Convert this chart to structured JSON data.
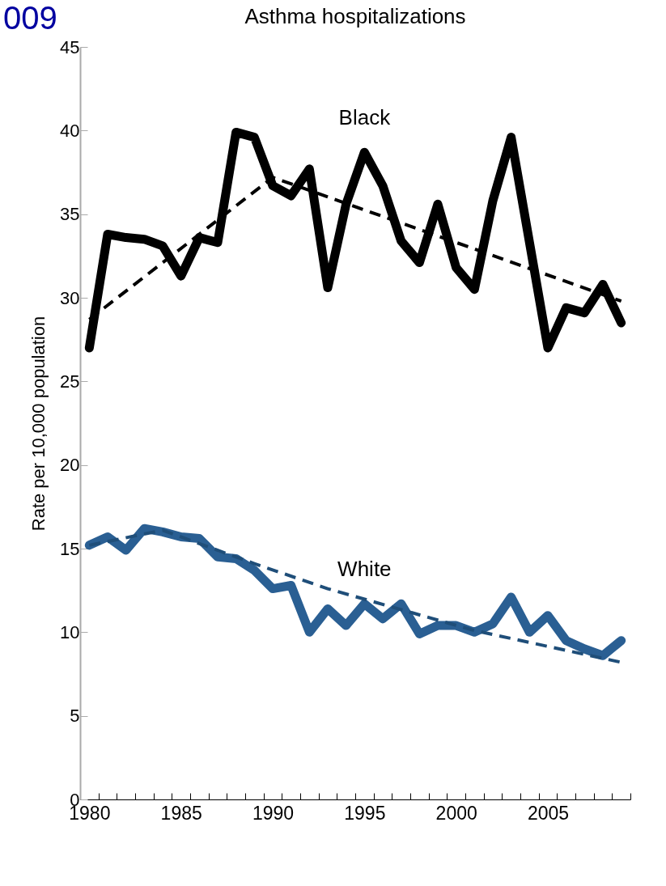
{
  "chart_data": {
    "type": "line",
    "title": "Asthma hospitalizations",
    "ylabel": "Rate per 10,000 population",
    "annotations": [
      "009"
    ],
    "x": [
      1980,
      1981,
      1982,
      1983,
      1984,
      1985,
      1986,
      1987,
      1988,
      1989,
      1990,
      1991,
      1992,
      1993,
      1994,
      1995,
      1996,
      1997,
      1998,
      1999,
      2000,
      2001,
      2002,
      2003,
      2004,
      2005,
      2006,
      2007,
      2008,
      2009
    ],
    "xlim": [
      1979.5,
      2009.5
    ],
    "xticks": [
      1980,
      1985,
      1990,
      1995,
      2000,
      2005,
      {
        "value": 1979.5,
        "label": null
      },
      {
        "value": 1980.5,
        "label": null
      },
      {
        "value": 1981.5,
        "label": null
      },
      {
        "value": 1982.5,
        "label": null
      },
      {
        "value": 1983.5,
        "label": null
      },
      {
        "value": 1984.5,
        "label": null
      },
      {
        "value": 1985.5,
        "label": null
      },
      {
        "value": 1986.5,
        "label": null
      },
      {
        "value": 1987.5,
        "label": null
      },
      {
        "value": 1988.5,
        "label": null
      },
      {
        "value": 1989.5,
        "label": null
      },
      {
        "value": 1990.5,
        "label": null
      },
      {
        "value": 1991.5,
        "label": null
      },
      {
        "value": 1992.5,
        "label": null
      },
      {
        "value": 1993.5,
        "label": null
      },
      {
        "value": 1994.5,
        "label": null
      },
      {
        "value": 1995.5,
        "label": null
      },
      {
        "value": 1996.5,
        "label": null
      },
      {
        "value": 1997.5,
        "label": null
      },
      {
        "value": 1998.5,
        "label": null
      },
      {
        "value": 1999.5,
        "label": null
      },
      {
        "value": 2000.5,
        "label": null
      },
      {
        "value": 2001.5,
        "label": null
      },
      {
        "value": 2002.5,
        "label": null
      },
      {
        "value": 2003.5,
        "label": null
      },
      {
        "value": 2004.5,
        "label": null
      },
      {
        "value": 2005.5,
        "label": null
      },
      {
        "value": 2006.5,
        "label": null
      },
      {
        "value": 2007.5,
        "label": null
      },
      {
        "value": 2008.5,
        "label": null
      },
      {
        "value": 2009.5,
        "label": null
      }
    ],
    "ylim": [
      0,
      45
    ],
    "yticks": [
      0,
      5,
      10,
      15,
      20,
      25,
      30,
      35,
      40,
      45
    ],
    "series": [
      {
        "name": "Black",
        "color": "#000000",
        "values": [
          27.0,
          33.8,
          33.6,
          33.5,
          33.1,
          31.3,
          33.6,
          33.3,
          39.9,
          39.6,
          36.7,
          36.1,
          37.7,
          30.6,
          35.6,
          38.7,
          36.7,
          33.4,
          32.1,
          35.6,
          31.8,
          30.5,
          35.8,
          39.6,
          33.3,
          27.0,
          29.4,
          29.1,
          30.8,
          28.5
        ]
      },
      {
        "name": "White",
        "color": "#2a5f93",
        "values": [
          15.2,
          15.7,
          14.9,
          16.2,
          16.0,
          15.7,
          15.6,
          14.5,
          14.4,
          13.7,
          12.6,
          12.8,
          10.0,
          11.4,
          10.4,
          11.7,
          10.8,
          11.7,
          9.9,
          10.4,
          10.4,
          10.0,
          10.5,
          12.1,
          10.0,
          11.0,
          9.5,
          9.0,
          8.6,
          9.5
        ]
      },
      {
        "type": "line",
        "color": "#000000",
        "line_style": "dashed",
        "x": [
          1980,
          1990,
          2009
        ],
        "values": [
          28.7,
          37.2,
          29.8
        ]
      },
      {
        "type": "line",
        "color": "#1f4e79",
        "line_style": "dashed",
        "x": [
          1980,
          1984,
          1989,
          1993,
          2001,
          2009
        ],
        "values": [
          15.2,
          16.1,
          14.1,
          12.6,
          10.1,
          8.2
        ]
      }
    ]
  }
}
